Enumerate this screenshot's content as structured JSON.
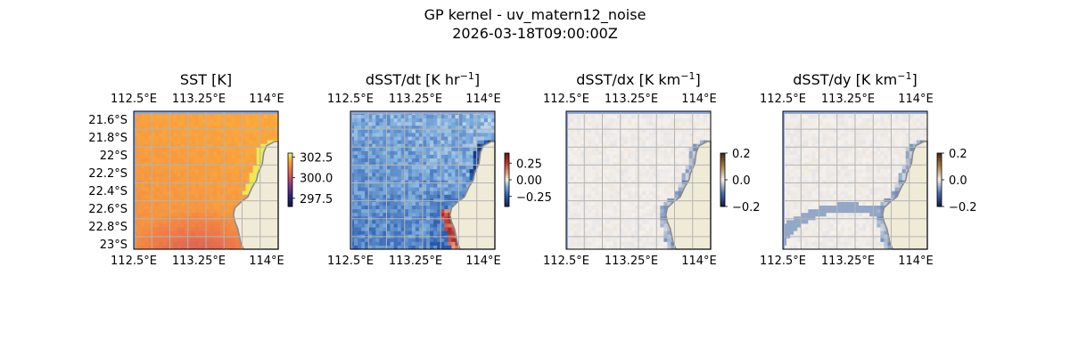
{
  "figure": {
    "title_line1": "GP kernel - uv_matern12_noise",
    "title_line2": "2026-03-18T09:00:00Z"
  },
  "colors": {
    "land": "#efebd7",
    "coast": "#8c8c8c",
    "grid": "#b4b4b4",
    "missing": "#8fa7dd"
  },
  "chart_data": [
    {
      "type": "heatmap",
      "title": "SST [K]",
      "x_ticks": [
        "112.5°E",
        "113.25°E",
        "114°E"
      ],
      "y_ticks": [
        "21.6°S",
        "21.8°S",
        "22°S",
        "22.2°S",
        "22.4°S",
        "22.6°S",
        "22.8°S",
        "23°S"
      ],
      "show_y_ticks": true,
      "colorbar": {
        "colormap": "thermal",
        "ticks": [
          "302.5",
          "300.0",
          "297.5"
        ],
        "range": [
          296.5,
          303.0
        ]
      },
      "field": "sst",
      "grid": true
    },
    {
      "type": "heatmap",
      "title_main": "dSST/dt [K hr",
      "title_sup": "−1",
      "title_end": "]",
      "x_ticks": [
        "112.5°E",
        "113.25°E",
        "114°E"
      ],
      "show_y_ticks": false,
      "colorbar": {
        "colormap": "balance",
        "ticks": [
          "0.25",
          "0.00",
          "−0.25"
        ],
        "range": [
          -0.4,
          0.4
        ]
      },
      "field": "dsst_dt",
      "grid": true
    },
    {
      "type": "heatmap",
      "title_main": "dSST/dx [K km",
      "title_sup": "−1",
      "title_end": "]",
      "x_ticks": [
        "112.5°E",
        "113.25°E",
        "114°E"
      ],
      "show_y_ticks": false,
      "colorbar": {
        "colormap": "diff",
        "ticks": [
          "0.2",
          "0.0",
          "−0.2"
        ],
        "range": [
          -0.2,
          0.2
        ]
      },
      "field": "dsst_dx",
      "grid": true
    },
    {
      "type": "heatmap",
      "title_main": "dSST/dy [K km",
      "title_sup": "−1",
      "title_end": "]",
      "x_ticks": [
        "112.5°E",
        "113.25°E",
        "114°E"
      ],
      "show_y_ticks": false,
      "colorbar": {
        "colormap": "diff",
        "ticks": [
          "0.2",
          "0.0",
          "−0.2"
        ],
        "range": [
          -0.2,
          0.2
        ]
      },
      "field": "dsst_dy",
      "grid": true
    }
  ]
}
